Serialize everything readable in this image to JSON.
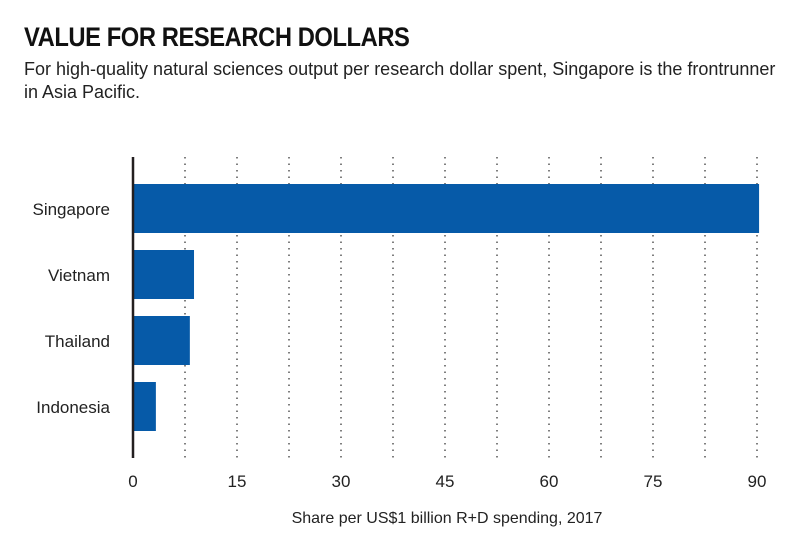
{
  "chart_data": {
    "type": "bar",
    "orientation": "horizontal",
    "title": "VALUE FOR RESEARCH DOLLARS",
    "subtitle": "For high-quality natural sciences output per research dollar spent, Singapore is the frontrunner in Asia Pacific.",
    "categories": [
      "Singapore",
      "Vietnam",
      "Thailand",
      "Indonesia"
    ],
    "values": [
      90.3,
      8.8,
      8.2,
      3.3
    ],
    "xlabel": "Share per US$1 billion R+D spending, 2017",
    "ylabel": "",
    "xlim": [
      0,
      90
    ],
    "xticks": [
      "0",
      "15",
      "30",
      "45",
      "60",
      "75",
      "90"
    ],
    "grid": "dotted vertical every 7.5",
    "colors": {
      "bar": "#065aa8",
      "axis": "#231f20"
    }
  }
}
